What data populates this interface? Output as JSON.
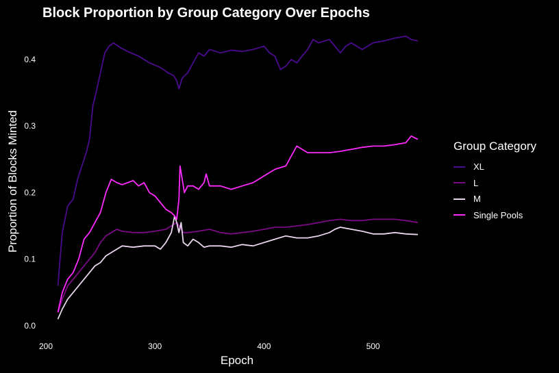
{
  "chart_data": {
    "type": "line",
    "title": "Block Proportion by Group Category Over Epochs",
    "xlabel": "Epoch",
    "ylabel": "Proportion of Blocks Minted",
    "xlim": [
      211,
      541
    ],
    "ylim": [
      0.0,
      0.44
    ],
    "x_ticks": [
      200,
      300,
      400,
      500
    ],
    "y_ticks": [
      0.0,
      0.1,
      0.2,
      0.3,
      0.4
    ],
    "grid": false,
    "background": "#000000",
    "legend": {
      "title": "Group Category",
      "placement": "right"
    },
    "series": [
      {
        "name": "XL",
        "color": "#4b0b8f",
        "points": [
          [
            211,
            0.06
          ],
          [
            215,
            0.14
          ],
          [
            220,
            0.18
          ],
          [
            225,
            0.19
          ],
          [
            229,
            0.22
          ],
          [
            233,
            0.24
          ],
          [
            237,
            0.26
          ],
          [
            240,
            0.28
          ],
          [
            243,
            0.33
          ],
          [
            246,
            0.35
          ],
          [
            250,
            0.38
          ],
          [
            254,
            0.41
          ],
          [
            258,
            0.42
          ],
          [
            262,
            0.425
          ],
          [
            268,
            0.418
          ],
          [
            275,
            0.412
          ],
          [
            285,
            0.405
          ],
          [
            295,
            0.395
          ],
          [
            305,
            0.388
          ],
          [
            312,
            0.38
          ],
          [
            317,
            0.376
          ],
          [
            320,
            0.368
          ],
          [
            322,
            0.356
          ],
          [
            325,
            0.372
          ],
          [
            330,
            0.38
          ],
          [
            335,
            0.395
          ],
          [
            340,
            0.41
          ],
          [
            345,
            0.405
          ],
          [
            350,
            0.415
          ],
          [
            360,
            0.41
          ],
          [
            370,
            0.414
          ],
          [
            380,
            0.412
          ],
          [
            390,
            0.415
          ],
          [
            400,
            0.42
          ],
          [
            405,
            0.41
          ],
          [
            410,
            0.405
          ],
          [
            415,
            0.385
          ],
          [
            420,
            0.39
          ],
          [
            425,
            0.4
          ],
          [
            430,
            0.395
          ],
          [
            435,
            0.405
          ],
          [
            440,
            0.415
          ],
          [
            445,
            0.43
          ],
          [
            450,
            0.425
          ],
          [
            460,
            0.43
          ],
          [
            470,
            0.41
          ],
          [
            475,
            0.42
          ],
          [
            480,
            0.425
          ],
          [
            490,
            0.415
          ],
          [
            500,
            0.425
          ],
          [
            510,
            0.428
          ],
          [
            520,
            0.432
          ],
          [
            530,
            0.435
          ],
          [
            535,
            0.43
          ],
          [
            541,
            0.428
          ]
        ]
      },
      {
        "name": "L",
        "color": "#7b0a85",
        "points": [
          [
            211,
            0.02
          ],
          [
            215,
            0.04
          ],
          [
            220,
            0.06
          ],
          [
            225,
            0.07
          ],
          [
            230,
            0.08
          ],
          [
            235,
            0.09
          ],
          [
            240,
            0.1
          ],
          [
            245,
            0.11
          ],
          [
            250,
            0.125
          ],
          [
            255,
            0.135
          ],
          [
            260,
            0.14
          ],
          [
            265,
            0.145
          ],
          [
            270,
            0.142
          ],
          [
            280,
            0.14
          ],
          [
            290,
            0.14
          ],
          [
            300,
            0.142
          ],
          [
            310,
            0.145
          ],
          [
            315,
            0.15
          ],
          [
            320,
            0.155
          ],
          [
            323,
            0.148
          ],
          [
            326,
            0.14
          ],
          [
            330,
            0.14
          ],
          [
            340,
            0.142
          ],
          [
            350,
            0.145
          ],
          [
            360,
            0.14
          ],
          [
            370,
            0.138
          ],
          [
            380,
            0.14
          ],
          [
            390,
            0.142
          ],
          [
            400,
            0.145
          ],
          [
            410,
            0.148
          ],
          [
            420,
            0.148
          ],
          [
            430,
            0.15
          ],
          [
            440,
            0.152
          ],
          [
            450,
            0.155
          ],
          [
            460,
            0.158
          ],
          [
            470,
            0.16
          ],
          [
            480,
            0.158
          ],
          [
            490,
            0.158
          ],
          [
            500,
            0.16
          ],
          [
            510,
            0.16
          ],
          [
            520,
            0.16
          ],
          [
            530,
            0.158
          ],
          [
            541,
            0.155
          ]
        ]
      },
      {
        "name": "M",
        "color": "#ead6ee",
        "points": [
          [
            211,
            0.01
          ],
          [
            215,
            0.025
          ],
          [
            220,
            0.04
          ],
          [
            225,
            0.05
          ],
          [
            230,
            0.06
          ],
          [
            235,
            0.07
          ],
          [
            240,
            0.08
          ],
          [
            245,
            0.09
          ],
          [
            250,
            0.095
          ],
          [
            255,
            0.105
          ],
          [
            260,
            0.11
          ],
          [
            265,
            0.115
          ],
          [
            270,
            0.12
          ],
          [
            280,
            0.118
          ],
          [
            290,
            0.12
          ],
          [
            300,
            0.12
          ],
          [
            305,
            0.115
          ],
          [
            310,
            0.125
          ],
          [
            315,
            0.14
          ],
          [
            318,
            0.165
          ],
          [
            320,
            0.155
          ],
          [
            322,
            0.14
          ],
          [
            324,
            0.155
          ],
          [
            326,
            0.125
          ],
          [
            330,
            0.12
          ],
          [
            335,
            0.13
          ],
          [
            340,
            0.125
          ],
          [
            345,
            0.118
          ],
          [
            350,
            0.12
          ],
          [
            360,
            0.12
          ],
          [
            370,
            0.118
          ],
          [
            380,
            0.122
          ],
          [
            390,
            0.12
          ],
          [
            400,
            0.125
          ],
          [
            410,
            0.13
          ],
          [
            420,
            0.135
          ],
          [
            430,
            0.132
          ],
          [
            440,
            0.132
          ],
          [
            450,
            0.135
          ],
          [
            460,
            0.14
          ],
          [
            465,
            0.145
          ],
          [
            470,
            0.148
          ],
          [
            480,
            0.145
          ],
          [
            490,
            0.142
          ],
          [
            500,
            0.138
          ],
          [
            510,
            0.138
          ],
          [
            520,
            0.14
          ],
          [
            530,
            0.138
          ],
          [
            541,
            0.137
          ]
        ]
      },
      {
        "name": "Single Pools",
        "color": "#ff2bff",
        "points": [
          [
            211,
            0.02
          ],
          [
            215,
            0.05
          ],
          [
            220,
            0.07
          ],
          [
            225,
            0.08
          ],
          [
            230,
            0.1
          ],
          [
            235,
            0.13
          ],
          [
            240,
            0.14
          ],
          [
            245,
            0.155
          ],
          [
            250,
            0.17
          ],
          [
            255,
            0.2
          ],
          [
            260,
            0.22
          ],
          [
            265,
            0.215
          ],
          [
            270,
            0.212
          ],
          [
            275,
            0.215
          ],
          [
            280,
            0.218
          ],
          [
            285,
            0.21
          ],
          [
            290,
            0.215
          ],
          [
            295,
            0.2
          ],
          [
            300,
            0.195
          ],
          [
            305,
            0.185
          ],
          [
            310,
            0.175
          ],
          [
            315,
            0.17
          ],
          [
            318,
            0.165
          ],
          [
            320,
            0.16
          ],
          [
            322,
            0.19
          ],
          [
            323,
            0.24
          ],
          [
            325,
            0.22
          ],
          [
            327,
            0.2
          ],
          [
            330,
            0.21
          ],
          [
            335,
            0.21
          ],
          [
            340,
            0.205
          ],
          [
            345,
            0.215
          ],
          [
            347,
            0.228
          ],
          [
            350,
            0.21
          ],
          [
            360,
            0.21
          ],
          [
            370,
            0.205
          ],
          [
            380,
            0.21
          ],
          [
            390,
            0.215
          ],
          [
            400,
            0.225
          ],
          [
            410,
            0.235
          ],
          [
            420,
            0.24
          ],
          [
            430,
            0.27
          ],
          [
            440,
            0.26
          ],
          [
            450,
            0.26
          ],
          [
            460,
            0.26
          ],
          [
            470,
            0.262
          ],
          [
            480,
            0.265
          ],
          [
            490,
            0.268
          ],
          [
            500,
            0.27
          ],
          [
            510,
            0.27
          ],
          [
            520,
            0.272
          ],
          [
            530,
            0.275
          ],
          [
            535,
            0.285
          ],
          [
            541,
            0.28
          ]
        ]
      }
    ]
  }
}
